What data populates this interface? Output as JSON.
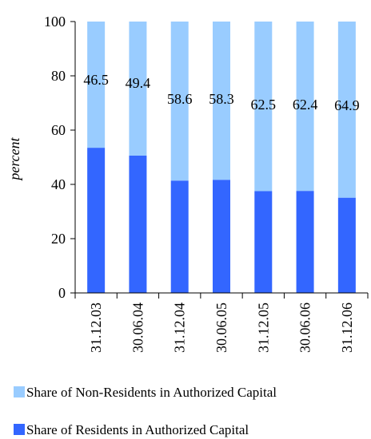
{
  "chart_data": {
    "type": "bar",
    "stacked": true,
    "percent_stacked": true,
    "title": "",
    "xlabel": "",
    "ylabel": "percent",
    "ylim": [
      0,
      100
    ],
    "yticks": [
      0,
      20,
      40,
      60,
      80,
      100
    ],
    "categories": [
      "31.12.03",
      "30.06.04",
      "31.12.04",
      "30.06.05",
      "31.12.05",
      "30.06.06",
      "31.12.06"
    ],
    "series": [
      {
        "name": "Share of Residents in Authorized Capital",
        "color": "#3366ff",
        "values": [
          53.5,
          50.6,
          41.4,
          41.7,
          37.5,
          37.6,
          35.1
        ]
      },
      {
        "name": "Share of Non-Residents in Authorized Capital",
        "color": "#99ccff",
        "values": [
          46.5,
          49.4,
          58.6,
          58.3,
          62.5,
          62.4,
          64.9
        ],
        "data_labels": [
          "46.5",
          "49.4",
          "58.6",
          "58.3",
          "62.5",
          "62.4",
          "64.9"
        ]
      }
    ],
    "legend": {
      "placement": "bottom",
      "entries": [
        "Share of Non-Residents in Authorized Capital",
        "Share of Residents in Authorized Capital"
      ]
    },
    "grid": false
  }
}
